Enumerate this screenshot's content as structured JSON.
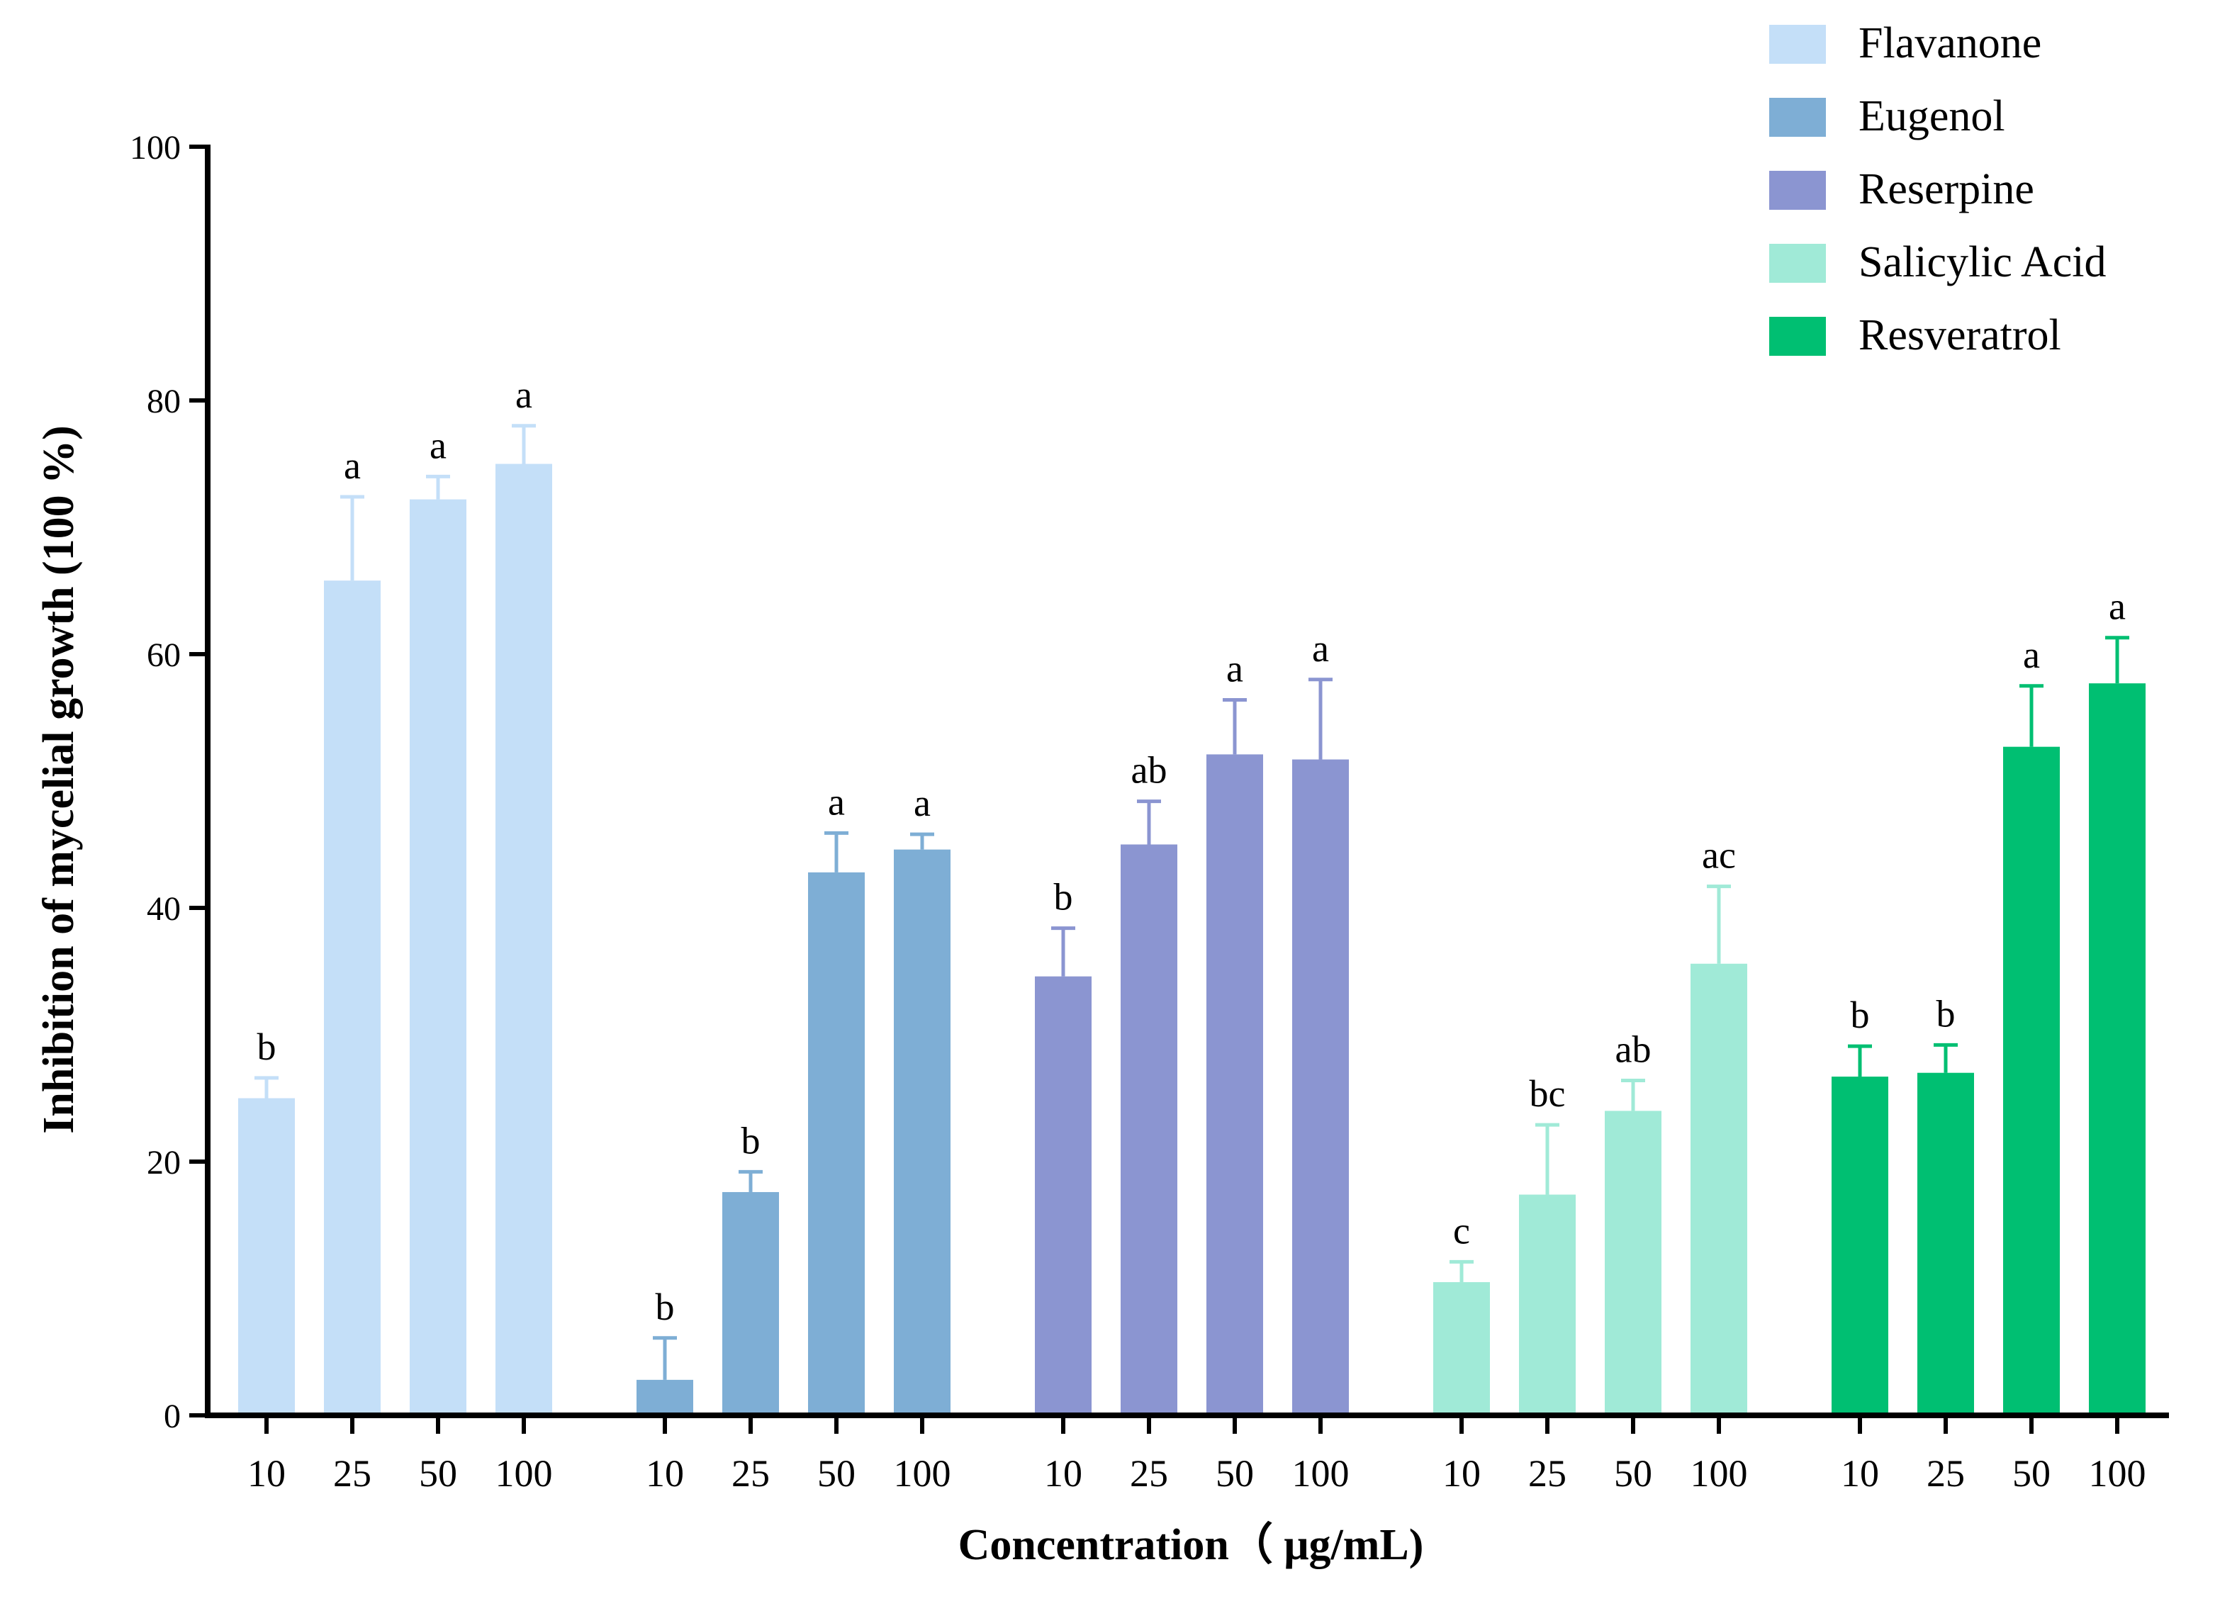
{
  "chart_data": {
    "type": "bar",
    "title": "",
    "xlabel": "Concentration（ μg/mL)",
    "ylabel": "Inhibition of mycelial growth (100 %)",
    "ylim": [
      0,
      100
    ],
    "yticks": [
      0,
      20,
      40,
      60,
      80,
      100
    ],
    "grid": false,
    "legend_position": "top-right",
    "categories": [
      "10",
      "25",
      "50",
      "100"
    ],
    "series": [
      {
        "name": "Flavanone",
        "color": "#c4dff8",
        "values": [
          25.0,
          65.8,
          72.2,
          75.0
        ],
        "errors": [
          1.6,
          6.6,
          1.8,
          3.0
        ],
        "letters": [
          "b",
          "a",
          "a",
          "a"
        ]
      },
      {
        "name": "Eugenol",
        "color": "#7eaed5",
        "values": [
          2.8,
          17.6,
          42.8,
          44.6
        ],
        "errors": [
          3.3,
          1.6,
          3.1,
          1.2
        ],
        "letters": [
          "b",
          "b",
          "a",
          "a"
        ]
      },
      {
        "name": "Reserpine",
        "color": "#8b95d1",
        "values": [
          34.6,
          45.0,
          52.1,
          51.7
        ],
        "errors": [
          3.8,
          3.4,
          4.3,
          6.3
        ],
        "letters": [
          "b",
          "ab",
          "a",
          "a"
        ]
      },
      {
        "name": "Salicylic Acid",
        "color": "#a0ead7",
        "values": [
          10.5,
          17.4,
          24.0,
          35.6
        ],
        "errors": [
          1.6,
          5.5,
          2.4,
          6.1
        ],
        "letters": [
          "c",
          "bc",
          "ab",
          "ac"
        ]
      },
      {
        "name": "Resveratrol",
        "color": "#00bf72",
        "values": [
          26.7,
          27.0,
          52.7,
          57.7
        ],
        "errors": [
          2.4,
          2.2,
          4.8,
          3.6
        ],
        "letters": [
          "b",
          "b",
          "a",
          "a"
        ]
      }
    ]
  }
}
